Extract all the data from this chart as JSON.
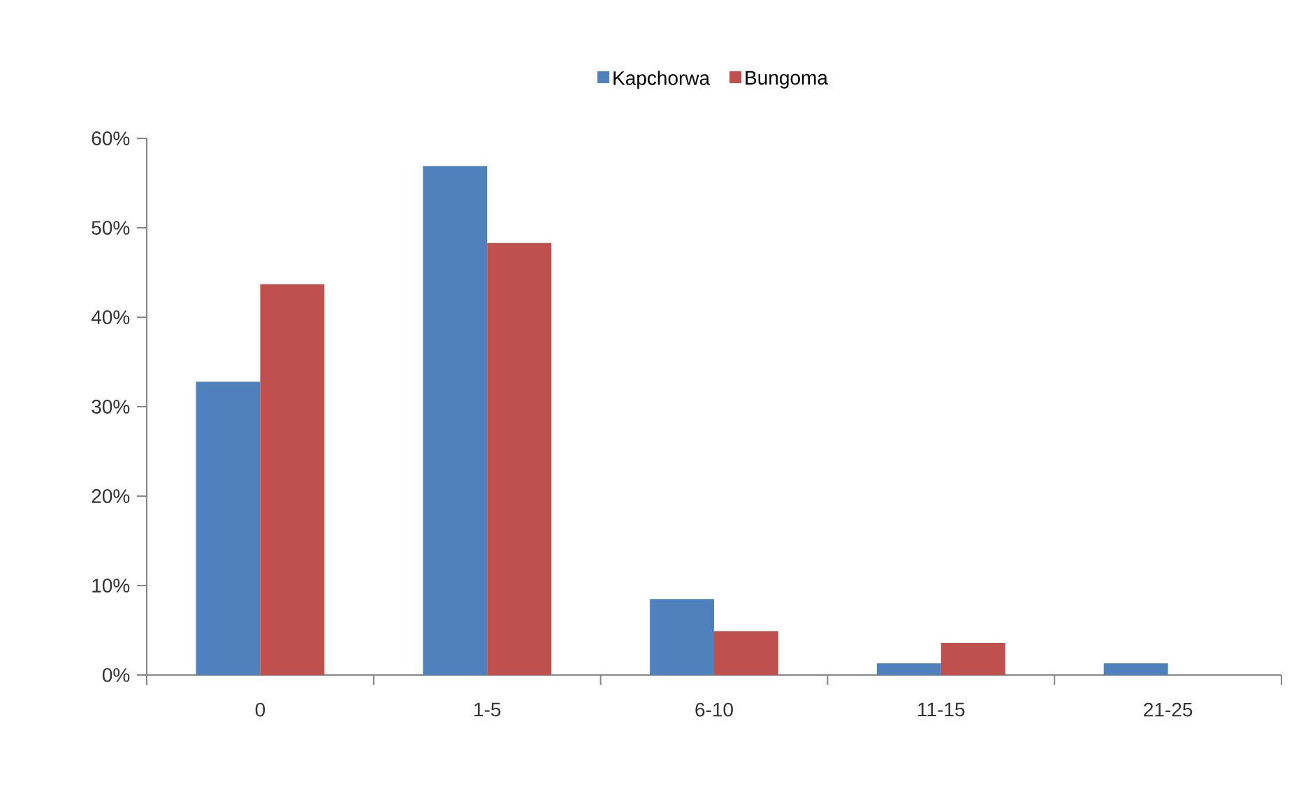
{
  "chart_data": {
    "type": "bar",
    "categories": [
      "0",
      "1-5",
      "6-10",
      "11-15",
      "21-25"
    ],
    "series": [
      {
        "name": "Kapchorwa",
        "color": "#4f81bd",
        "values": [
          32.8,
          56.9,
          8.5,
          1.3,
          1.3
        ]
      },
      {
        "name": "Bungoma",
        "color": "#c0504d",
        "values": [
          43.7,
          48.3,
          4.9,
          3.6,
          0
        ]
      }
    ],
    "ylim": [
      0,
      60
    ],
    "yticks": [
      {
        "value": 0,
        "label": "0%"
      },
      {
        "value": 10,
        "label": "10%"
      },
      {
        "value": 20,
        "label": "20%"
      },
      {
        "value": 30,
        "label": "30%"
      },
      {
        "value": 40,
        "label": "40%"
      },
      {
        "value": 50,
        "label": "50%"
      },
      {
        "value": 60,
        "label": "60%"
      }
    ],
    "legend": "top"
  }
}
